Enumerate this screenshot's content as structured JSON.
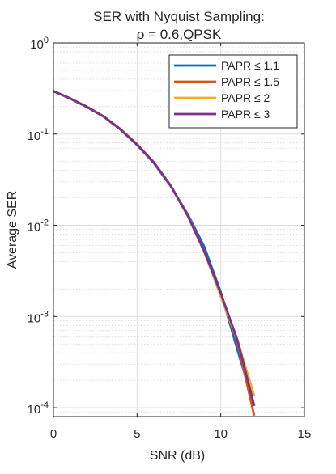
{
  "chart_data": {
    "type": "line",
    "title_line1": "SER with Nyquist Sampling:",
    "title_line2": "ρ = 0.6,QPSK",
    "xlabel": "SNR (dB)",
    "ylabel": "Average SER",
    "xlim": [
      0,
      15
    ],
    "ylim": [
      8e-05,
      1
    ],
    "yscale": "log",
    "x_ticks": [
      0,
      5,
      10,
      15
    ],
    "y_ticks": [
      {
        "value": 1,
        "base": "10",
        "exp": "0"
      },
      {
        "value": 0.1,
        "base": "10",
        "exp": "-1"
      },
      {
        "value": 0.01,
        "base": "10",
        "exp": "-2"
      },
      {
        "value": 0.001,
        "base": "10",
        "exp": "-3"
      },
      {
        "value": 0.0001,
        "base": "10",
        "exp": "-4"
      }
    ],
    "grid": true,
    "legend_position": "top-right",
    "series": [
      {
        "name": "PAPR ≤ 1.1",
        "color": "#0072BD",
        "x": [
          0,
          1,
          2,
          3,
          4,
          5,
          6,
          7,
          8,
          9,
          10,
          11,
          12
        ],
        "y": [
          0.295,
          0.245,
          0.198,
          0.155,
          0.112,
          0.076,
          0.048,
          0.027,
          0.0135,
          0.0059,
          0.00185,
          0.00043,
          0.000105
        ]
      },
      {
        "name": "PAPR ≤ 1.5",
        "color": "#D95319",
        "x": [
          0,
          1,
          2,
          3,
          4,
          5,
          6,
          7,
          8,
          9,
          10,
          11,
          12
        ],
        "y": [
          0.296,
          0.246,
          0.199,
          0.156,
          0.113,
          0.077,
          0.049,
          0.0272,
          0.013,
          0.0052,
          0.0017,
          0.00052,
          8.2e-05
        ]
      },
      {
        "name": "PAPR ≤ 2",
        "color": "#EDB120",
        "x": [
          0,
          1,
          2,
          3,
          4,
          5,
          6,
          7,
          8,
          9,
          10,
          11,
          12
        ],
        "y": [
          0.297,
          0.247,
          0.2,
          0.157,
          0.114,
          0.078,
          0.049,
          0.0275,
          0.0132,
          0.0053,
          0.00165,
          0.00055,
          0.000135
        ]
      },
      {
        "name": "PAPR ≤ 3",
        "color": "#7E2F8E",
        "x": [
          0,
          1,
          2,
          3,
          4,
          5,
          6,
          7,
          8,
          9,
          10,
          11,
          12
        ],
        "y": [
          0.296,
          0.246,
          0.199,
          0.156,
          0.113,
          0.077,
          0.049,
          0.0273,
          0.0131,
          0.0053,
          0.0018,
          0.00055,
          0.000105
        ]
      }
    ]
  }
}
